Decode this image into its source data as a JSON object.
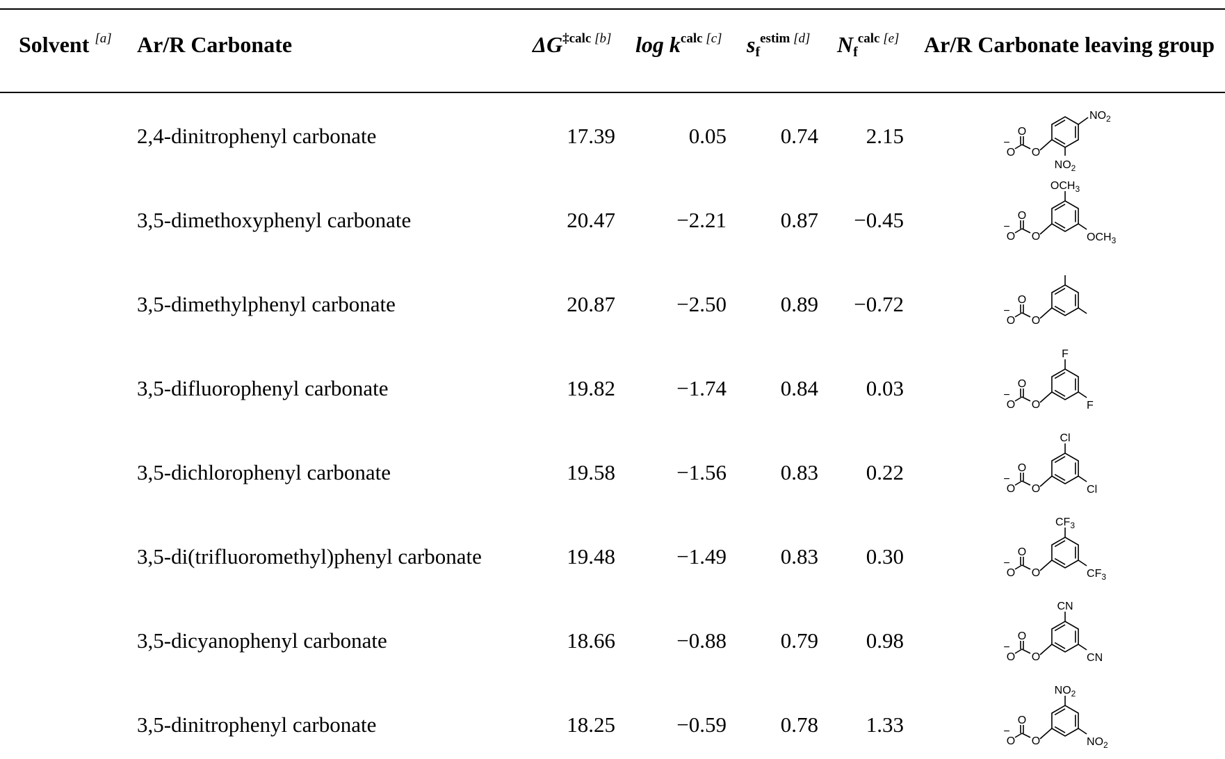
{
  "table": {
    "headers": {
      "solvent": "Solvent",
      "solvent_fn": "[a]",
      "compound": "Ar/R Carbonate",
      "dg_symbol": "ΔG",
      "dg_sup": "‡calc",
      "dg_fn": "[b]",
      "logk": "log k",
      "logk_sup": "calc",
      "logk_fn": "[c]",
      "sf": "s",
      "sf_sub": "f",
      "sf_sup": "estim",
      "sf_fn": "[d]",
      "nf": "N",
      "nf_sub": "f",
      "nf_sup": "calc",
      "nf_fn": "[e]",
      "leaving_group": "Ar/R Carbonate leaving group"
    },
    "rows": [
      {
        "compound": "2,4-dinitrophenyl carbonate",
        "dg": "17.39",
        "logk": "0.05",
        "sf": "0.74",
        "nf": "2.15",
        "structure": {
          "substituents": [
            "NO2",
            "NO2"
          ],
          "pattern": "2,4"
        }
      },
      {
        "compound": "3,5-dimethoxyphenyl carbonate",
        "dg": "20.47",
        "logk": "−2.21",
        "sf": "0.87",
        "nf": "−0.45",
        "structure": {
          "substituents": [
            "OCH3",
            "OCH3"
          ],
          "pattern": "3,5"
        }
      },
      {
        "compound": "3,5-dimethylphenyl carbonate",
        "dg": "20.87",
        "logk": "−2.50",
        "sf": "0.89",
        "nf": "−0.72",
        "structure": {
          "substituents": [
            "",
            ""
          ],
          "pattern": "3,5"
        }
      },
      {
        "compound": "3,5-difluorophenyl carbonate",
        "dg": "19.82",
        "logk": "−1.74",
        "sf": "0.84",
        "nf": "0.03",
        "structure": {
          "substituents": [
            "F",
            "F"
          ],
          "pattern": "3,5"
        }
      },
      {
        "compound": "3,5-dichlorophenyl carbonate",
        "dg": "19.58",
        "logk": "−1.56",
        "sf": "0.83",
        "nf": "0.22",
        "structure": {
          "substituents": [
            "Cl",
            "Cl"
          ],
          "pattern": "3,5"
        }
      },
      {
        "compound": "3,5-di(trifluoromethyl)phenyl carbonate",
        "dg": "19.48",
        "logk": "−1.49",
        "sf": "0.83",
        "nf": "0.30",
        "structure": {
          "substituents": [
            "CF3",
            "CF3"
          ],
          "pattern": "3,5"
        }
      },
      {
        "compound": "3,5-dicyanophenyl carbonate",
        "dg": "18.66",
        "logk": "−0.88",
        "sf": "0.79",
        "nf": "0.98",
        "structure": {
          "substituents": [
            "CN",
            "CN"
          ],
          "pattern": "3,5"
        }
      },
      {
        "compound": "3,5-dinitrophenyl carbonate",
        "dg": "18.25",
        "logk": "−0.59",
        "sf": "0.78",
        "nf": "1.33",
        "structure": {
          "substituents": [
            "NO2",
            "NO2"
          ],
          "pattern": "3,5"
        }
      }
    ]
  },
  "structure_labels": {
    "carbonyl_o": "O",
    "ester_o": "O",
    "anion_o": "O",
    "minus": "−"
  }
}
